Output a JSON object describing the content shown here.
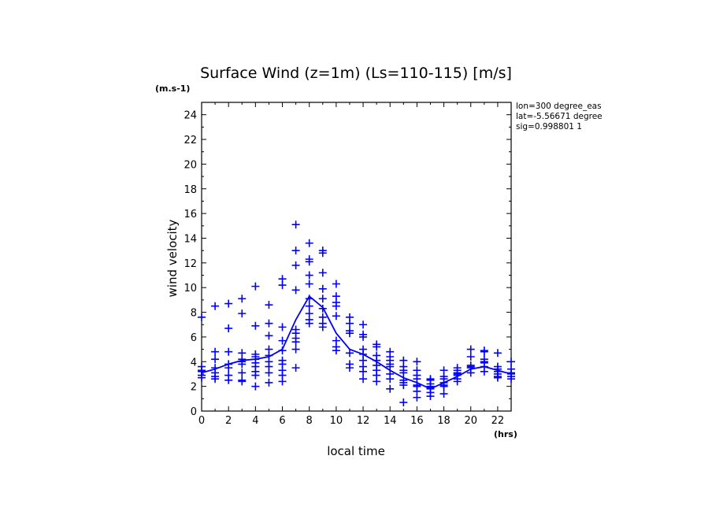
{
  "chart_data": {
    "type": "scatter",
    "title": "Surface Wind (z=1m) (Ls=110-115) [m/s]",
    "y_unit": "(m.s-1)",
    "x_unit": "(hrs)",
    "xlabel": "local time",
    "ylabel": "wind velocity",
    "info_lines": [
      "lon=300 degree_eas",
      "lat=-5.56671 degree",
      "sig=0.998801 1"
    ],
    "xlim": [
      0,
      23
    ],
    "ylim": [
      0,
      25
    ],
    "x_ticks": [
      0,
      2,
      4,
      6,
      8,
      10,
      12,
      14,
      16,
      18,
      20,
      22
    ],
    "y_ticks": [
      0,
      2,
      4,
      6,
      8,
      10,
      12,
      14,
      16,
      18,
      20,
      22,
      24
    ],
    "grid": false,
    "marker_color": "#0000ff",
    "series": [
      {
        "type": "scatter",
        "x": [
          0,
          0,
          0,
          0,
          0,
          0,
          1,
          1,
          1,
          1,
          1,
          1,
          1,
          2,
          2,
          2,
          2,
          2,
          2,
          2,
          3,
          3,
          3,
          3,
          3,
          3,
          3,
          3,
          3,
          4,
          4,
          4,
          4,
          4,
          4,
          4,
          4,
          4,
          4,
          5,
          5,
          5,
          5,
          5,
          5,
          5,
          5,
          5,
          6,
          6,
          6,
          6,
          6,
          6,
          6,
          6,
          6,
          6,
          7,
          7,
          7,
          7,
          7,
          7,
          7,
          7,
          7,
          7,
          8,
          8,
          8,
          8,
          8,
          8,
          8,
          8,
          8,
          8,
          9,
          9,
          9,
          9,
          9,
          9,
          9,
          9,
          9,
          10,
          10,
          10,
          10,
          10,
          10,
          10,
          10,
          11,
          11,
          11,
          11,
          11,
          11,
          11,
          12,
          12,
          12,
          12,
          12,
          12,
          12,
          12,
          12,
          13,
          13,
          13,
          13,
          13,
          13,
          13,
          13,
          14,
          14,
          14,
          14,
          14,
          14,
          14,
          14,
          15,
          15,
          15,
          15,
          15,
          15,
          15,
          15,
          16,
          16,
          16,
          16,
          16,
          16,
          16,
          16,
          17,
          17,
          17,
          17,
          17,
          17,
          17,
          17,
          18,
          18,
          18,
          18,
          18,
          18,
          18,
          19,
          19,
          19,
          19,
          19,
          19,
          19,
          20,
          20,
          20,
          20,
          20,
          20,
          21,
          21,
          21,
          21,
          21,
          21,
          21,
          22,
          22,
          22,
          22,
          22,
          22,
          22,
          23,
          23,
          23,
          23,
          23,
          23
        ],
        "y": [
          7.6,
          3.6,
          3.3,
          3.2,
          2.9,
          2.7,
          8.5,
          4.8,
          4.2,
          3.5,
          3.1,
          2.8,
          2.6,
          8.7,
          6.7,
          4.8,
          3.8,
          3.5,
          2.9,
          2.5,
          9.1,
          7.9,
          4.7,
          4.2,
          4.0,
          3.8,
          3.1,
          2.5,
          2.4,
          10.1,
          6.9,
          4.6,
          4.4,
          4.2,
          3.9,
          3.6,
          3.2,
          2.9,
          2.0,
          8.6,
          7.1,
          6.1,
          5.0,
          4.5,
          4.0,
          3.6,
          3.1,
          2.3,
          10.7,
          10.2,
          6.8,
          5.7,
          4.9,
          4.1,
          3.8,
          3.3,
          2.9,
          2.4,
          15.1,
          13.0,
          11.8,
          9.8,
          6.6,
          6.3,
          5.9,
          5.6,
          5.0,
          3.5,
          13.6,
          12.3,
          12.1,
          11.0,
          10.3,
          9.1,
          8.5,
          7.9,
          7.4,
          7.1,
          13.0,
          12.8,
          11.2,
          9.9,
          9.1,
          8.3,
          7.6,
          7.1,
          6.8,
          10.3,
          9.3,
          8.8,
          8.5,
          7.7,
          5.7,
          5.2,
          4.9,
          7.6,
          7.1,
          6.5,
          6.3,
          4.7,
          3.8,
          3.5,
          7.0,
          6.2,
          6.0,
          5.0,
          4.6,
          4.1,
          3.6,
          3.2,
          2.6,
          5.4,
          5.2,
          4.5,
          4.1,
          3.7,
          3.3,
          2.9,
          2.4,
          4.8,
          4.4,
          4.1,
          3.8,
          3.6,
          3.0,
          2.6,
          1.8,
          4.1,
          3.6,
          3.3,
          3.1,
          2.5,
          2.3,
          2.1,
          0.7,
          4.0,
          3.3,
          2.9,
          2.6,
          2.1,
          2.0,
          1.6,
          1.1,
          2.6,
          2.5,
          2.2,
          2.0,
          1.9,
          1.8,
          1.5,
          1.2,
          3.3,
          2.8,
          2.6,
          2.3,
          2.1,
          2.0,
          1.4,
          3.5,
          3.3,
          3.1,
          3.0,
          2.9,
          2.6,
          2.4,
          5.0,
          4.4,
          3.7,
          3.6,
          3.5,
          3.1,
          4.9,
          4.8,
          4.2,
          4.0,
          3.9,
          3.6,
          3.2,
          4.7,
          3.6,
          3.4,
          3.2,
          3.0,
          2.8,
          2.7,
          4.0,
          3.4,
          3.1,
          3.0,
          2.8,
          2.6
        ]
      },
      {
        "type": "line",
        "x": [
          0,
          1,
          2,
          3,
          4,
          5,
          6,
          7,
          8,
          9,
          10,
          11,
          12,
          13,
          14,
          15,
          16,
          17,
          18,
          19,
          20,
          21,
          22,
          23
        ],
        "y": [
          3.1,
          3.4,
          3.8,
          4.1,
          4.2,
          4.4,
          5.0,
          7.4,
          9.3,
          8.4,
          6.3,
          5.0,
          4.6,
          4.0,
          3.3,
          2.7,
          2.3,
          1.8,
          2.3,
          2.8,
          3.4,
          3.6,
          3.3,
          3.0
        ]
      }
    ]
  }
}
